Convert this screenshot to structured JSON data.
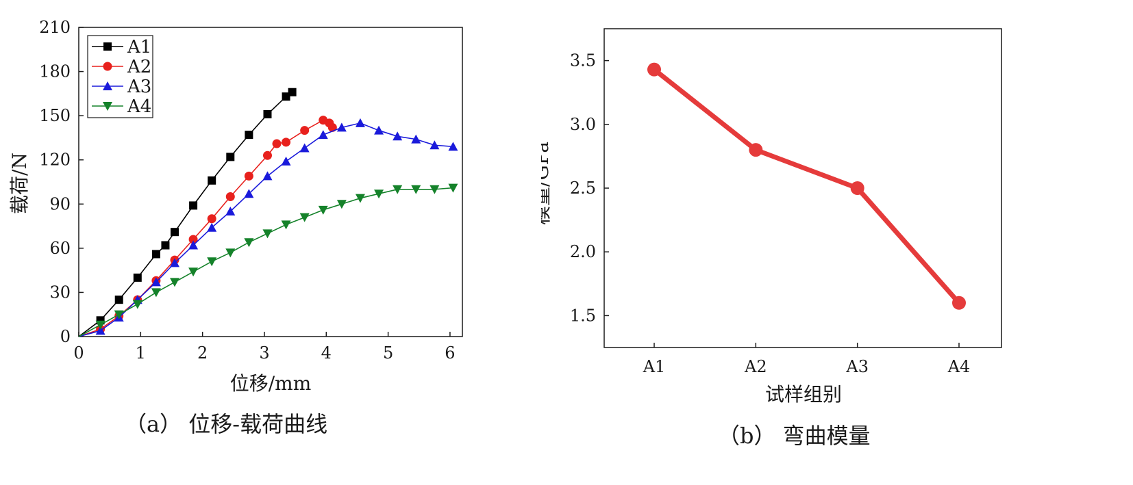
{
  "captions": {
    "left": "（a） 位移-载荷曲线",
    "right": "（b） 弯曲模量"
  },
  "chart_data": [
    {
      "type": "line",
      "xlabel": "位移/mm",
      "ylabel": "载荷/N",
      "xlim": [
        0,
        6.2
      ],
      "ylim": [
        0,
        210
      ],
      "xticks": [
        "0",
        "1",
        "2",
        "3",
        "4",
        "5",
        "6"
      ],
      "yticks": [
        "0",
        "30",
        "60",
        "90",
        "120",
        "150",
        "180",
        "210"
      ],
      "legend_position": "top-left",
      "grid": false,
      "series": [
        {
          "name": "A1",
          "marker": "square",
          "color": "#000000",
          "points": [
            [
              0,
              0
            ],
            [
              0.35,
              11
            ],
            [
              0.65,
              25
            ],
            [
              0.95,
              40
            ],
            [
              1.25,
              56
            ],
            [
              1.4,
              62
            ],
            [
              1.55,
              71
            ],
            [
              1.85,
              89
            ],
            [
              2.15,
              106
            ],
            [
              2.45,
              122
            ],
            [
              2.75,
              137
            ],
            [
              3.05,
              151
            ],
            [
              3.35,
              163
            ],
            [
              3.45,
              166
            ]
          ]
        },
        {
          "name": "A2",
          "marker": "circle",
          "color": "#e8211d",
          "points": [
            [
              0,
              0
            ],
            [
              0.35,
              5
            ],
            [
              0.65,
              14
            ],
            [
              0.95,
              25
            ],
            [
              1.25,
              38
            ],
            [
              1.55,
              52
            ],
            [
              1.85,
              66
            ],
            [
              2.15,
              80
            ],
            [
              2.45,
              95
            ],
            [
              2.75,
              109
            ],
            [
              3.05,
              123
            ],
            [
              3.2,
              131
            ],
            [
              3.35,
              132
            ],
            [
              3.65,
              140
            ],
            [
              3.95,
              147
            ],
            [
              4.05,
              145
            ],
            [
              4.1,
              142
            ]
          ]
        },
        {
          "name": "A3",
          "marker": "triangle-up",
          "color": "#1a1adb",
          "points": [
            [
              0,
              0
            ],
            [
              0.35,
              4
            ],
            [
              0.65,
              13
            ],
            [
              0.95,
              25
            ],
            [
              1.25,
              37
            ],
            [
              1.55,
              50
            ],
            [
              1.85,
              62
            ],
            [
              2.15,
              74
            ],
            [
              2.45,
              85
            ],
            [
              2.75,
              97
            ],
            [
              3.05,
              109
            ],
            [
              3.35,
              119
            ],
            [
              3.65,
              128
            ],
            [
              3.95,
              137
            ],
            [
              4.25,
              142
            ],
            [
              4.55,
              145
            ],
            [
              4.85,
              140
            ],
            [
              5.15,
              136
            ],
            [
              5.45,
              134
            ],
            [
              5.75,
              130
            ],
            [
              6.05,
              129
            ]
          ]
        },
        {
          "name": "A4",
          "marker": "triangle-down",
          "color": "#15822a",
          "points": [
            [
              0,
              0
            ],
            [
              0.35,
              8
            ],
            [
              0.65,
              15
            ],
            [
              0.95,
              22
            ],
            [
              1.25,
              30
            ],
            [
              1.55,
              37
            ],
            [
              1.85,
              44
            ],
            [
              2.15,
              51
            ],
            [
              2.45,
              57
            ],
            [
              2.75,
              64
            ],
            [
              3.05,
              70
            ],
            [
              3.35,
              76
            ],
            [
              3.65,
              81
            ],
            [
              3.95,
              86
            ],
            [
              4.25,
              90
            ],
            [
              4.55,
              94
            ],
            [
              4.85,
              97
            ],
            [
              5.15,
              100
            ],
            [
              5.45,
              100
            ],
            [
              5.75,
              100
            ],
            [
              6.05,
              101
            ]
          ]
        }
      ]
    },
    {
      "type": "line",
      "xlabel": "试样组别",
      "ylabel": "模量/GPa",
      "categories": [
        "A1",
        "A2",
        "A3",
        "A4"
      ],
      "values": [
        3.43,
        2.8,
        2.5,
        1.6
      ],
      "ylim": [
        1.25,
        3.75
      ],
      "yticks": [
        "1.5",
        "2.0",
        "2.5",
        "3.0",
        "3.5"
      ],
      "color": "#e53b3b",
      "grid": false
    }
  ]
}
